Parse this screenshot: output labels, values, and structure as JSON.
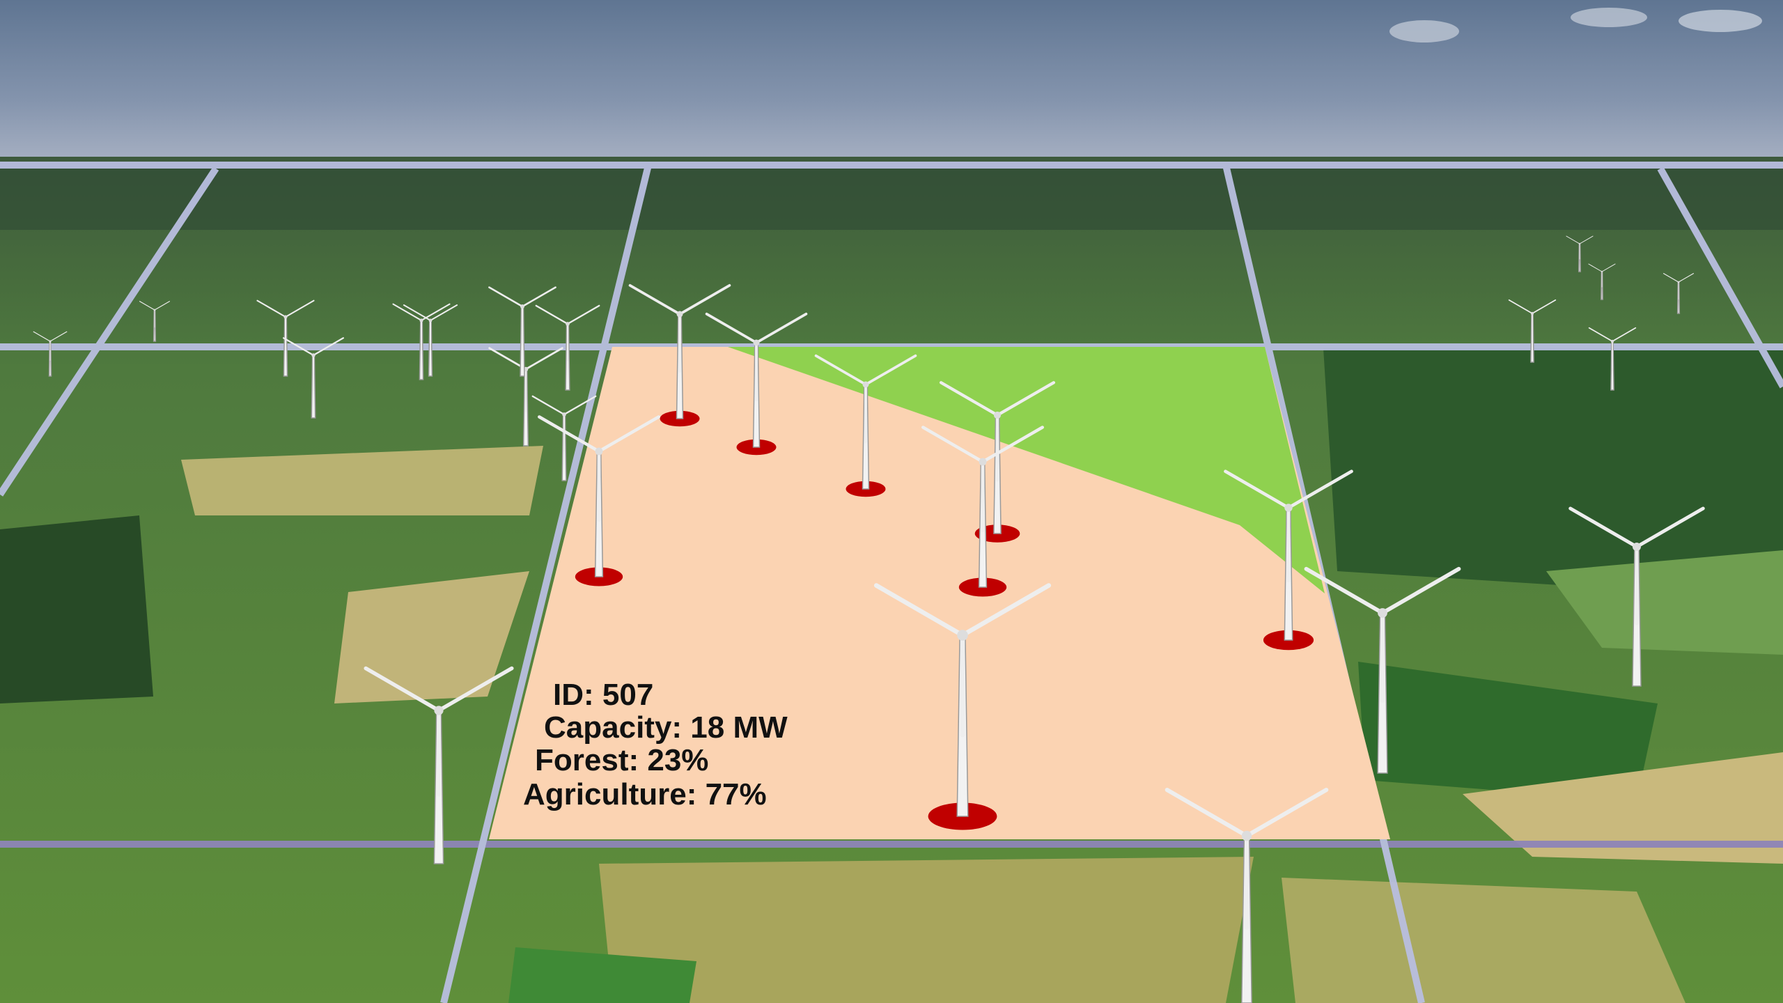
{
  "cell_info": {
    "lines": [
      "ID: 507",
      "Capacity: 18 MW",
      "Forest: 23%",
      "Agriculture: 77%"
    ]
  }
}
